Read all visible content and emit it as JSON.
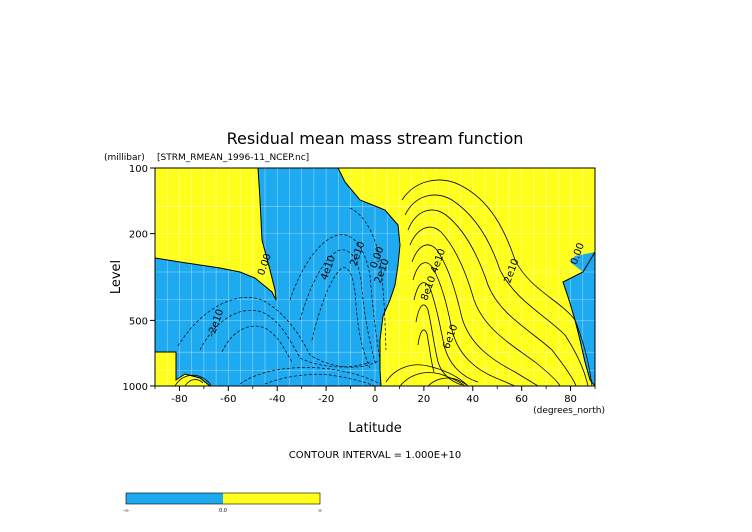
{
  "chart_data": {
    "type": "contour",
    "title": "Residual mean mass stream function",
    "subtitle": "[STRM_RMEAN_1996-11_NCEP.nc]",
    "ylabel": "Level",
    "yunits": "(millibar)",
    "xlabel": "Latitude",
    "xunits": "(degrees_north)",
    "xlim": [
      -90,
      90
    ],
    "ylim": [
      1000,
      100
    ],
    "y_scale": "log",
    "x_ticks": [
      -80,
      -60,
      -40,
      -20,
      0,
      20,
      40,
      60,
      80
    ],
    "y_ticks": [
      100,
      200,
      500,
      1000
    ],
    "contour_interval_text": "CONTOUR INTERVAL = 1.000E+10",
    "contour_interval": 10000000000,
    "contour_labels": [
      {
        "text": "0.00",
        "x": -44,
        "y": 280
      },
      {
        "text": "4e10",
        "x": -18,
        "y": 290
      },
      {
        "text": "2e10",
        "x": -6,
        "y": 250
      },
      {
        "text": "0.00",
        "x": 2,
        "y": 260
      },
      {
        "text": "2e10",
        "x": 4,
        "y": 300
      },
      {
        "text": "-2e10",
        "x": -64,
        "y": 520
      },
      {
        "text": "4e10",
        "x": 27,
        "y": 270
      },
      {
        "text": "8e10",
        "x": 23,
        "y": 360
      },
      {
        "text": "6e10",
        "x": 32,
        "y": 600
      },
      {
        "text": "2e10",
        "x": 57,
        "y": 300
      },
      {
        "text": "0.00",
        "x": 84,
        "y": 250
      }
    ],
    "colors": {
      "negative": "#1eaaf0",
      "positive": "#ffff1e"
    },
    "colorbar_ticks": [
      "-∞",
      "0.0",
      "∞"
    ],
    "grid": true
  }
}
